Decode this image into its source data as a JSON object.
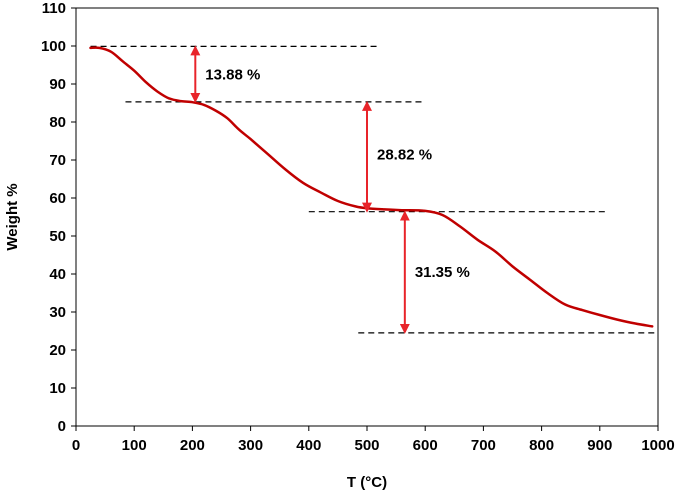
{
  "chart_data": {
    "type": "line",
    "title": "",
    "xlabel": "T (°C)",
    "ylabel": "Weight %",
    "xlim": [
      0,
      1000
    ],
    "ylim": [
      0,
      110
    ],
    "x_ticks": [
      0,
      100,
      200,
      300,
      400,
      500,
      600,
      700,
      800,
      900,
      1000
    ],
    "y_ticks": [
      0,
      10,
      20,
      30,
      40,
      50,
      60,
      70,
      80,
      90,
      100,
      110
    ],
    "grid": false,
    "legend": "none",
    "series_color": "#c00000",
    "annotation_color": "#e8242a",
    "series": [
      {
        "x": [
          25,
          40,
          60,
          80,
          100,
          120,
          140,
          160,
          180,
          200,
          220,
          240,
          260,
          280,
          300,
          330,
          360,
          390,
          420,
          450,
          480,
          500,
          530,
          560,
          600,
          630,
          660,
          690,
          720,
          750,
          780,
          810,
          840,
          870,
          900,
          930,
          960,
          990
        ],
        "y": [
          99.5,
          99.5,
          98.5,
          96.0,
          93.5,
          90.5,
          88.0,
          86.2,
          85.5,
          85.2,
          84.5,
          83.0,
          81.0,
          78.0,
          75.5,
          71.5,
          67.5,
          64.0,
          61.5,
          59.2,
          57.8,
          57.3,
          57.0,
          56.8,
          56.6,
          55.5,
          52.5,
          49.0,
          46.0,
          42.0,
          38.5,
          35.0,
          32.0,
          30.5,
          29.2,
          28.0,
          27.0,
          26.2
        ]
      }
    ],
    "reference_lines": [
      {
        "y": 99.9,
        "x_from": 25,
        "x_to": 520
      },
      {
        "y": 85.3,
        "x_from": 85,
        "x_to": 600
      },
      {
        "y": 56.4,
        "x_from": 400,
        "x_to": 910
      },
      {
        "y": 24.5,
        "x_from": 485,
        "x_to": 1000
      }
    ],
    "annotations": [
      {
        "label": "13.88 %",
        "x": 205,
        "y_top": 99.9,
        "y_bottom": 85.3,
        "label_y": 92.5
      },
      {
        "label": "28.82 %",
        "x": 500,
        "y_top": 85.3,
        "y_bottom": 56.4,
        "label_y": 71.5
      },
      {
        "label": "31.35 %",
        "x": 565,
        "y_top": 56.4,
        "y_bottom": 24.5,
        "label_y": 40.5
      }
    ]
  }
}
